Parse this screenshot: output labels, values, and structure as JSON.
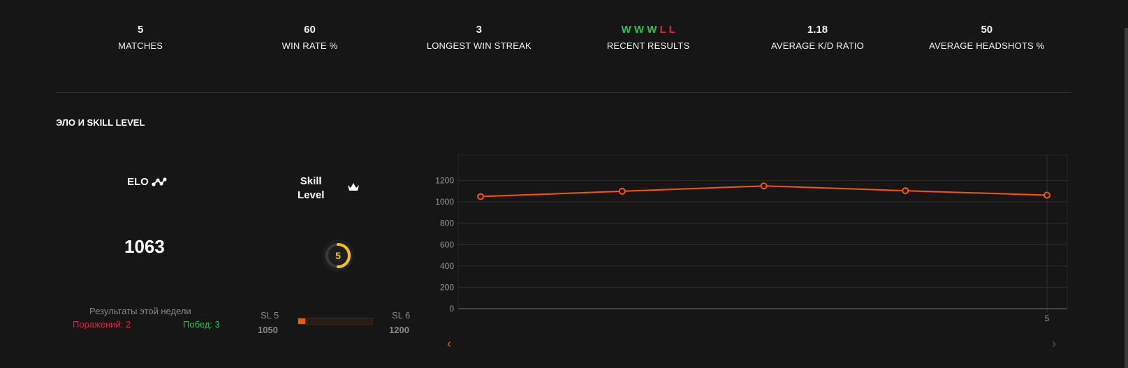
{
  "stats": [
    {
      "value": "5",
      "label": "MATCHES"
    },
    {
      "value": "60",
      "label": "WIN RATE %"
    },
    {
      "value": "3",
      "label": "LONGEST WIN STREAK"
    },
    {
      "value": "",
      "label": "RECENT RESULTS"
    },
    {
      "value": "1.18",
      "label": "AVERAGE K/D RATIO"
    },
    {
      "value": "50",
      "label": "AVERAGE HEADSHOTS %"
    }
  ],
  "recent_results": [
    "W",
    "W",
    "W",
    "L",
    "L"
  ],
  "section_title": "ЭЛО И SKILL LEVEL",
  "elo": {
    "label": "ELO",
    "value": "1063"
  },
  "skill": {
    "label_line1": "Skill",
    "label_line2": "Level",
    "level": "5",
    "level_fraction": 0.5
  },
  "week": {
    "title": "Результаты этой недели",
    "losses": "Поражений: 2",
    "wins": "Побед: 3"
  },
  "sl_progress": {
    "from_label": "SL 5",
    "from_value": "1050",
    "to_label": "SL 6",
    "to_value": "1200",
    "fill_fraction": 0.09
  },
  "colors": {
    "accent": "#ff5500",
    "win": "#2ec24c",
    "loss": "#e8213d",
    "skill": "#f7c600"
  },
  "chart_data": {
    "type": "line",
    "x": [
      1,
      2,
      3,
      4,
      5
    ],
    "x_tick_labels": [
      "",
      "",
      "",
      "",
      "5"
    ],
    "values": [
      1050,
      1100,
      1150,
      1105,
      1063
    ],
    "yticks": [
      0,
      200,
      400,
      600,
      800,
      1000,
      1200
    ],
    "ylim": [
      0,
      1400
    ],
    "color": "#ff5500"
  },
  "icons": {
    "elo": "graph-nodes-icon",
    "skill": "crown-icon",
    "prev": "chevron-left-icon",
    "next": "chevron-right-icon"
  }
}
